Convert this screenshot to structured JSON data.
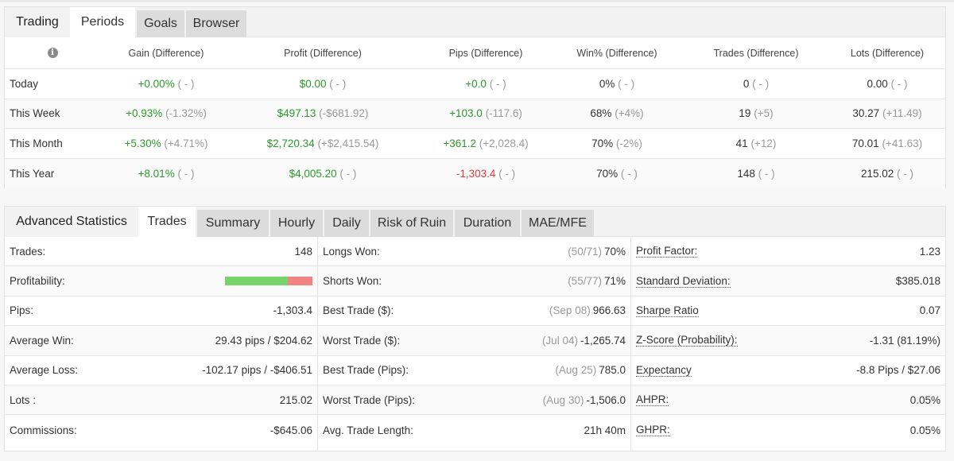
{
  "periods_panel": {
    "tabs": [
      "Trading",
      "Periods",
      "Goals",
      "Browser"
    ],
    "active_tab": "Periods",
    "headers": [
      "Gain (Difference)",
      "Profit (Difference)",
      "Pips (Difference)",
      "Win% (Difference)",
      "Trades (Difference)",
      "Lots (Difference)"
    ],
    "rows": [
      {
        "label": "Today",
        "gain": "+0.00%",
        "gain_diff": "( - )",
        "profit": "$0.00",
        "profit_diff": "( - )",
        "pips": "+0.0",
        "pips_diff": "( - )",
        "win": "0%",
        "win_diff": "( - )",
        "trades": "0",
        "trades_diff": "( - )",
        "lots": "0.00",
        "lots_diff": "( - )"
      },
      {
        "label": "This Week",
        "gain": "+0.93%",
        "gain_diff": "(-1.32%)",
        "profit": "$497.13",
        "profit_diff": "(-$681.92)",
        "pips": "+103.0",
        "pips_diff": "(-117.6)",
        "win": "68%",
        "win_diff": "(+4%)",
        "trades": "19",
        "trades_diff": "(+5)",
        "lots": "30.27",
        "lots_diff": "(+11.49)"
      },
      {
        "label": "This Month",
        "gain": "+5.30%",
        "gain_diff": "(+4.71%)",
        "profit": "$2,720.34",
        "profit_diff": "(+$2,415.54)",
        "pips": "+361.2",
        "pips_diff": "(+2,028.4)",
        "win": "70%",
        "win_diff": "(-2%)",
        "trades": "41",
        "trades_diff": "(+12)",
        "lots": "70.01",
        "lots_diff": "(+41.63)"
      },
      {
        "label": "This Year",
        "gain": "+8.01%",
        "gain_diff": "( - )",
        "profit": "$4,005.20",
        "profit_diff": "( - )",
        "pips": "-1,303.4",
        "pips_diff": "( - )",
        "win": "70%",
        "win_diff": "( - )",
        "trades": "148",
        "trades_diff": "( - )",
        "lots": "215.02",
        "lots_diff": "( - )"
      }
    ]
  },
  "advanced_panel": {
    "title": "Advanced Statistics",
    "tabs": [
      "Trades",
      "Summary",
      "Hourly",
      "Daily",
      "Risk of Ruin",
      "Duration",
      "MAE/MFE"
    ],
    "active_tab": "Trades",
    "col1": [
      {
        "k": "Trades:",
        "v": "148"
      },
      {
        "k": "Profitability:",
        "profitability_bar": {
          "positive_fraction": 0.72
        }
      },
      {
        "k": "Pips:",
        "v": "-1,303.4"
      },
      {
        "k": "Average Win:",
        "v": "29.43 pips / $204.62"
      },
      {
        "k": "Average Loss:",
        "v": "-102.17 pips / -$406.51"
      },
      {
        "k": "Lots :",
        "v": "215.02"
      },
      {
        "k": "Commissions:",
        "v": "-$645.06"
      }
    ],
    "col2": [
      {
        "k": "Longs Won:",
        "pre": "(50/71)",
        "v": "70%"
      },
      {
        "k": "Shorts Won:",
        "pre": "(55/77)",
        "v": "71%"
      },
      {
        "k": "Best Trade ($):",
        "pre": "(Sep 08)",
        "v": "966.63"
      },
      {
        "k": "Worst Trade ($):",
        "pre": "(Jul 04)",
        "v": "-1,265.74"
      },
      {
        "k": "Best Trade (Pips):",
        "pre": "(Aug 25)",
        "v": "785.0"
      },
      {
        "k": "Worst Trade (Pips):",
        "pre": "(Aug 30)",
        "v": "-1,506.0"
      },
      {
        "k": "Avg. Trade Length:",
        "pre": "",
        "v": "21h 40m"
      }
    ],
    "col3": [
      {
        "k": "Profit Factor:",
        "v": "1.23"
      },
      {
        "k": "Standard Deviation:",
        "v": "$385.018"
      },
      {
        "k": "Sharpe Ratio",
        "v": "0.07"
      },
      {
        "k": "Z-Score (Probability):",
        "v": "-1.31 (81.19%)"
      },
      {
        "k": "Expectancy",
        "v": "-8.8 Pips / $27.06"
      },
      {
        "k": "AHPR:",
        "v": "0.05%"
      },
      {
        "k": "GHPR:",
        "v": "0.05%"
      }
    ]
  },
  "colors": {
    "positive": "#2a9a2a",
    "negative": "#e23b3b",
    "muted": "#999999",
    "bar_positive": "#79d36b",
    "bar_negative": "#f08484"
  },
  "icons": {
    "info": "info-circle-icon"
  }
}
